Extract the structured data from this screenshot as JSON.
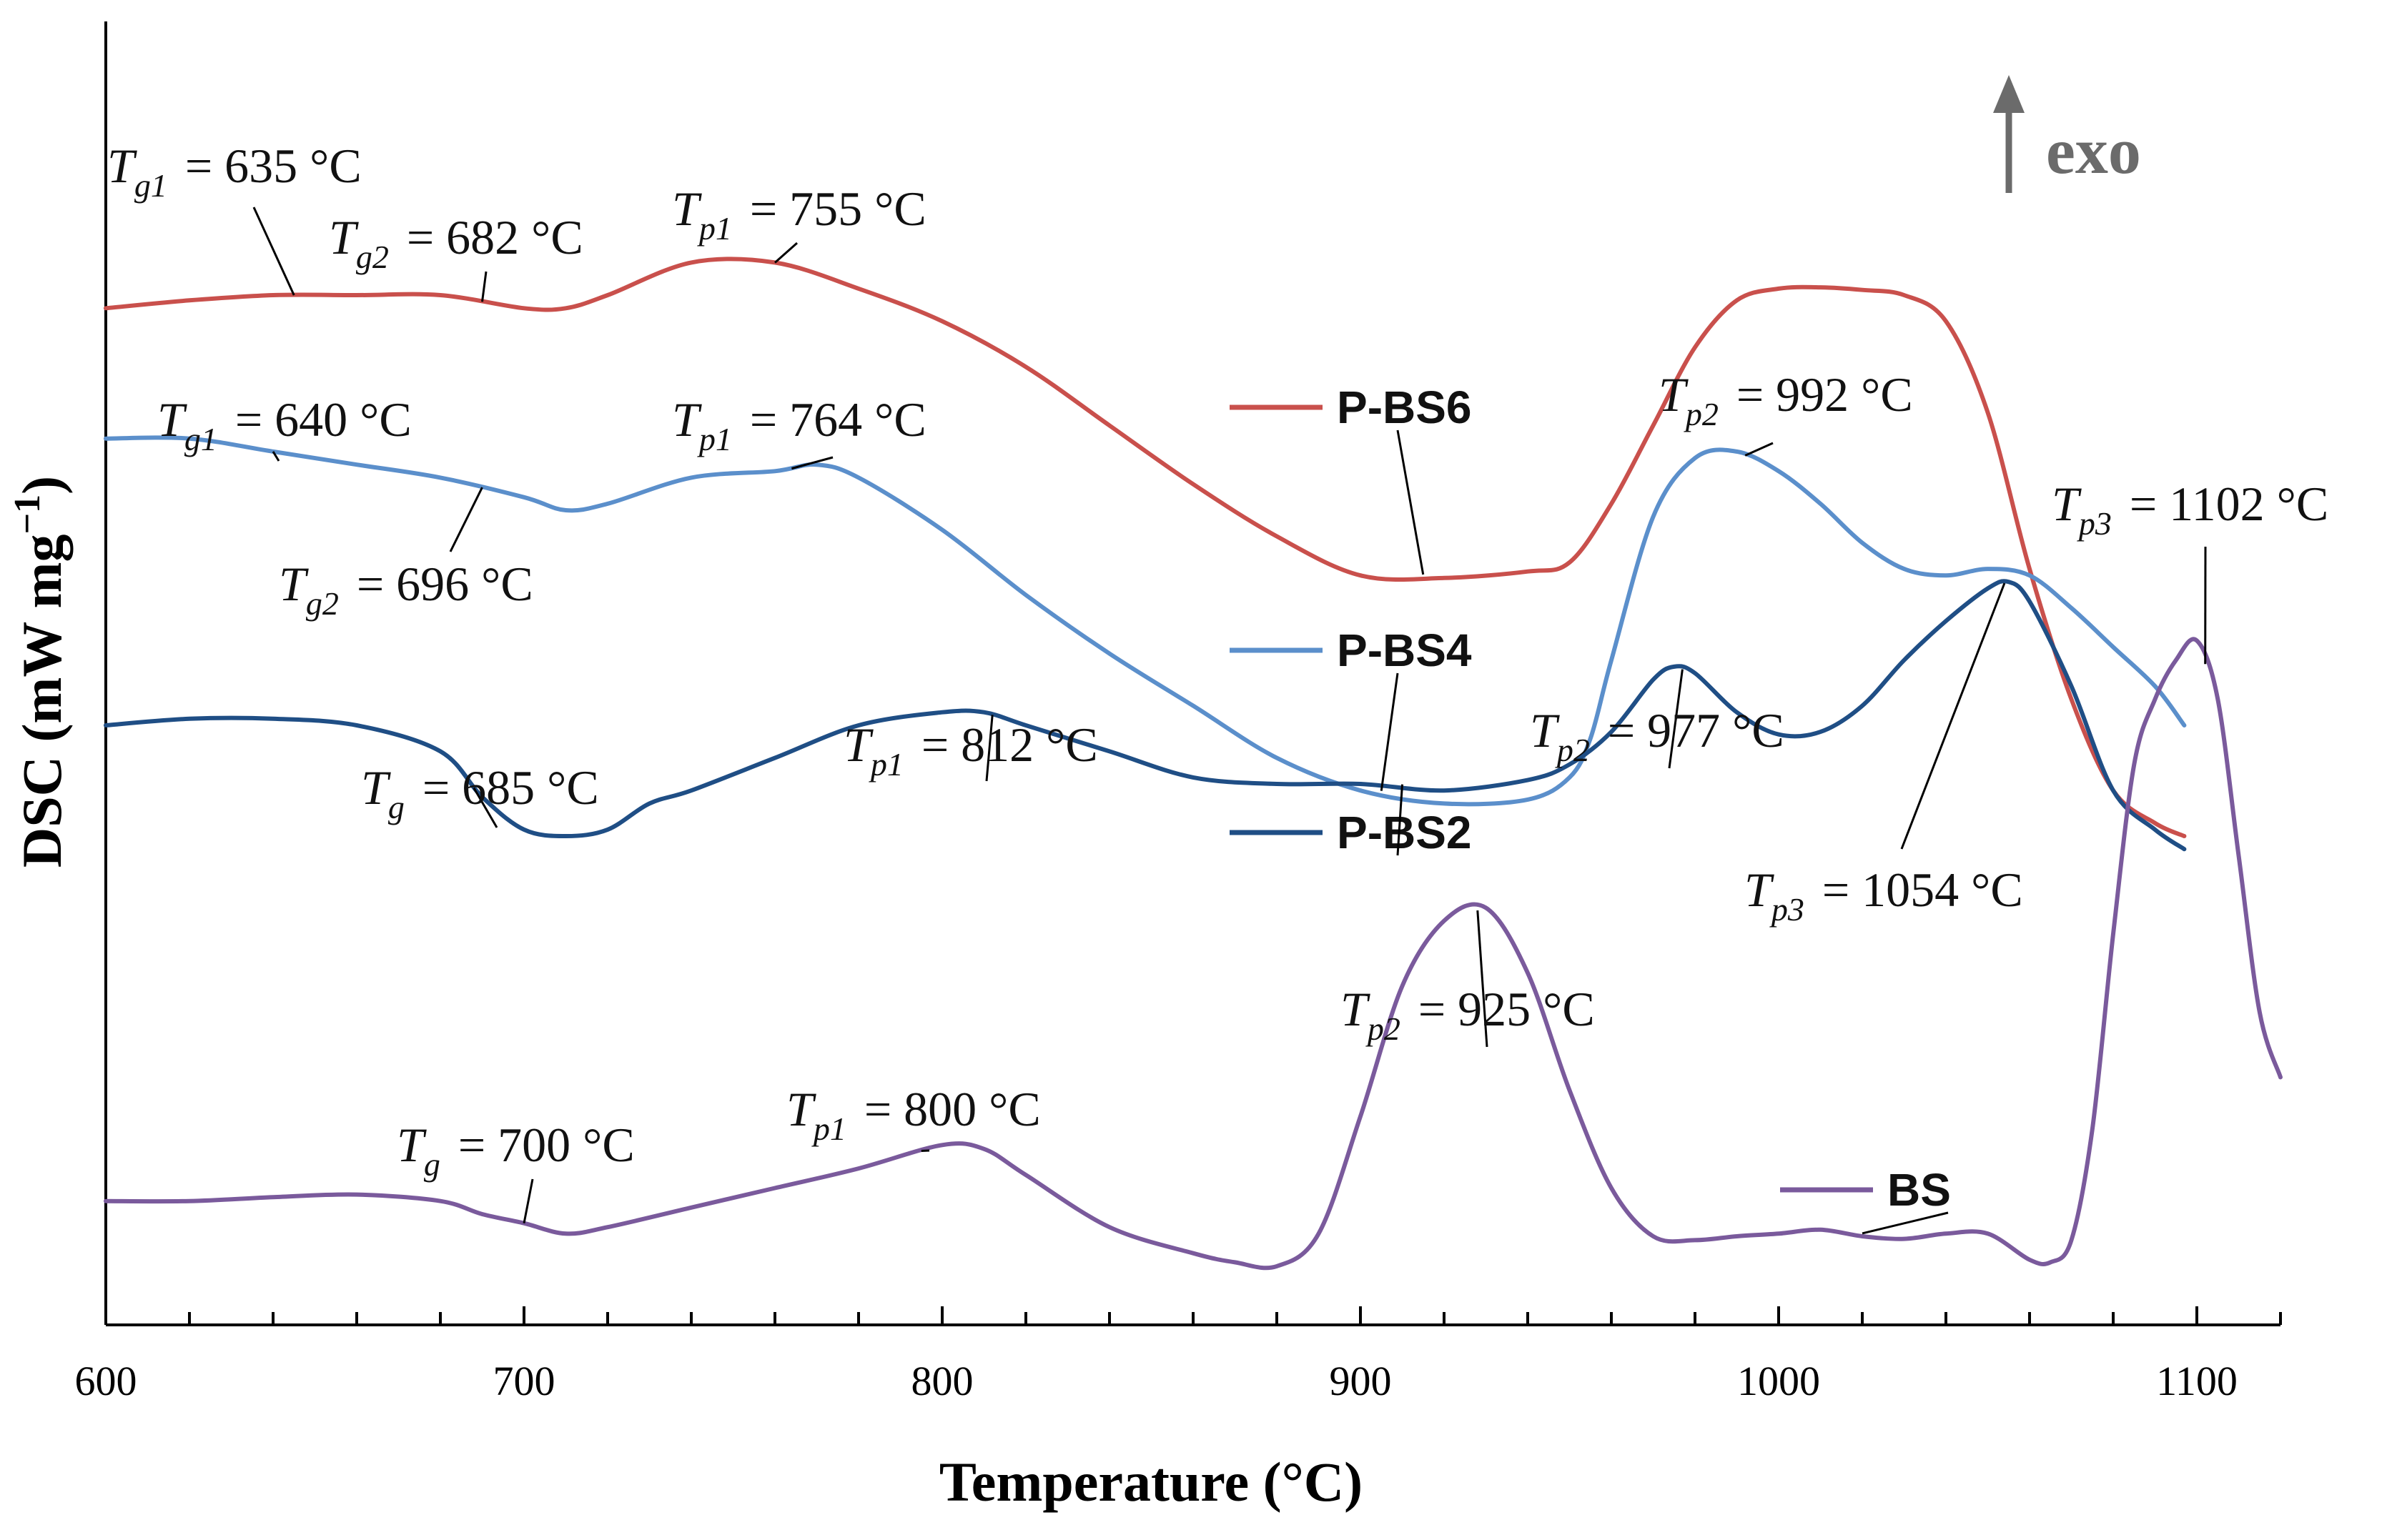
{
  "chart_data": {
    "type": "line",
    "xlabel": "Temperature (°C)",
    "ylabel_main": "DSC (mW mg",
    "ylabel_exp": "−1",
    "ylabel_close": ")",
    "xlim": [
      600,
      1120
    ],
    "ylim": [
      0,
      100
    ],
    "x_ticks": [
      600,
      700,
      800,
      900,
      1000,
      1100
    ],
    "x_minor_step": 20,
    "exo_label": "exo",
    "colors": {
      "P-BS6": "#c9504c",
      "P-BS4": "#5b8fcb",
      "P-BS2": "#1f4e85",
      "BS": "#7a5a9c"
    },
    "series": [
      {
        "name": "P-BS6",
        "x": [
          600,
          620,
          640,
          660,
          680,
          700,
          710,
          720,
          740,
          760,
          780,
          800,
          820,
          840,
          860,
          880,
          900,
          920,
          940,
          950,
          960,
          970,
          980,
          990,
          1000,
          1010,
          1020,
          1030,
          1040,
          1050,
          1060,
          1070,
          1080,
          1090,
          1097
        ],
        "y": [
          78,
          78.6,
          79,
          79,
          79,
          78,
          78,
          79,
          81.5,
          81.5,
          79.5,
          77,
          73.5,
          69,
          64.5,
          60.5,
          57.5,
          57.3,
          57.8,
          58.5,
          63,
          69,
          75,
          78.6,
          79.5,
          79.6,
          79.4,
          79,
          77,
          70,
          58,
          48,
          41,
          38.5,
          37.5
        ]
      },
      {
        "name": "P-BS4",
        "x": [
          600,
          620,
          640,
          660,
          680,
          700,
          710,
          720,
          740,
          760,
          770,
          780,
          800,
          820,
          840,
          860,
          880,
          900,
          920,
          940,
          950,
          955,
          960,
          970,
          980,
          990,
          1000,
          1010,
          1020,
          1030,
          1040,
          1050,
          1060,
          1070,
          1080,
          1090,
          1097
        ],
        "y": [
          68,
          68,
          67,
          66,
          65,
          63.5,
          62.5,
          63,
          65,
          65.5,
          66,
          65,
          61,
          56,
          51.5,
          47.5,
          43.5,
          41,
          40,
          40.3,
          42,
          45,
          51,
          62,
          66.5,
          67,
          65.5,
          63,
          60,
          58,
          57.5,
          58,
          57.5,
          55,
          52,
          49,
          46
        ]
      },
      {
        "name": "P-BS2",
        "x": [
          600,
          620,
          640,
          660,
          680,
          690,
          700,
          710,
          720,
          730,
          740,
          760,
          780,
          800,
          810,
          820,
          840,
          860,
          880,
          900,
          920,
          940,
          950,
          960,
          970,
          975,
          980,
          990,
          1000,
          1010,
          1020,
          1030,
          1040,
          1050,
          1055,
          1060,
          1070,
          1080,
          1090,
          1097
        ],
        "y": [
          46,
          46.5,
          46.5,
          46,
          44,
          40.5,
          38,
          37.5,
          38,
          40,
          41,
          43.5,
          46,
          47,
          47,
          46,
          44,
          42,
          41.5,
          41.5,
          41,
          41.8,
          43,
          45.5,
          49.5,
          50.5,
          50,
          47,
          45.3,
          45.5,
          47.5,
          51,
          54,
          56.5,
          57,
          55.5,
          49,
          41,
          38,
          36.5
        ]
      },
      {
        "name": "BS",
        "x": [
          600,
          620,
          640,
          660,
          680,
          690,
          700,
          710,
          720,
          740,
          760,
          780,
          800,
          810,
          820,
          840,
          860,
          870,
          880,
          890,
          900,
          910,
          920,
          930,
          940,
          950,
          960,
          970,
          980,
          990,
          1000,
          1010,
          1020,
          1030,
          1040,
          1050,
          1060,
          1065,
          1070,
          1075,
          1080,
          1085,
          1090,
          1095,
          1100,
          1105,
          1110,
          1115,
          1120
        ],
        "y": [
          9.5,
          9.5,
          9.8,
          10,
          9.5,
          8.5,
          7.8,
          7,
          7.5,
          9,
          10.5,
          12,
          13.8,
          13.5,
          11.5,
          7.5,
          5.5,
          4.8,
          4.5,
          7,
          16,
          26,
          31,
          32,
          27,
          18,
          10.5,
          6.8,
          6.5,
          6.8,
          7,
          7.3,
          6.8,
          6.6,
          7,
          7,
          5,
          4.8,
          6.5,
          15,
          30,
          43,
          48,
          51,
          52.5,
          48,
          36,
          24,
          19
        ]
      }
    ],
    "legend": [
      {
        "name": "P-BS6",
        "label": "P-BS6"
      },
      {
        "name": "P-BS4",
        "label": "P-BS4"
      },
      {
        "name": "P-BS2",
        "label": "P-BS2"
      },
      {
        "name": "BS",
        "label": "BS"
      }
    ],
    "annotations": [
      {
        "series": "P-BS6",
        "sym": "T",
        "sub": "g1",
        "text": "= 635 °C",
        "x": 645
      },
      {
        "series": "P-BS6",
        "sym": "T",
        "sub": "g2",
        "text": "= 682 °C",
        "x": 690
      },
      {
        "series": "P-BS6",
        "sym": "T",
        "sub": "p1",
        "text": "= 755 °C",
        "x": 760
      },
      {
        "series": "P-BS4",
        "sym": "T",
        "sub": "g1",
        "text": "= 640 °C",
        "x": 640
      },
      {
        "series": "P-BS4",
        "sym": "T",
        "sub": "g2",
        "text": "= 696 °C",
        "x": 690
      },
      {
        "series": "P-BS4",
        "sym": "T",
        "sub": "p1",
        "text": "= 764 °C",
        "x": 764
      },
      {
        "series": "P-BS4",
        "sym": "T",
        "sub": "p2",
        "text": "= 992 °C",
        "x": 992
      },
      {
        "series": "BS",
        "sym": "T",
        "sub": "p3",
        "text": "= 1102 °C",
        "x": 1102
      },
      {
        "series": "P-BS2",
        "sym": "T",
        "sub": "g",
        "text": "= 685 °C",
        "x": 688
      },
      {
        "series": "P-BS2",
        "sym": "T",
        "sub": "p1",
        "text": "= 812 °C",
        "x": 812
      },
      {
        "series": "P-BS2",
        "sym": "T",
        "sub": "p2",
        "text": "= 977 °C",
        "x": 977
      },
      {
        "series": "P-BS2",
        "sym": "T",
        "sub": "p3",
        "text": "= 1054 °C",
        "x": 1054
      },
      {
        "series": "BS",
        "sym": "T",
        "sub": "g",
        "text": "= 700 °C",
        "x": 700
      },
      {
        "series": "BS",
        "sym": "T",
        "sub": "p1",
        "text": "= 800 °C",
        "x": 795
      },
      {
        "series": "BS",
        "sym": "T",
        "sub": "p2",
        "text": "= 925 °C",
        "x": 928
      }
    ]
  }
}
